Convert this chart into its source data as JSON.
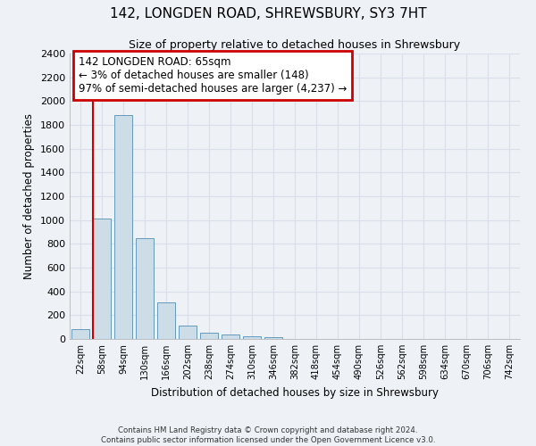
{
  "title_line1": "142, LONGDEN ROAD, SHREWSBURY, SY3 7HT",
  "title_line2": "Size of property relative to detached houses in Shrewsbury",
  "xlabel": "Distribution of detached houses by size in Shrewsbury",
  "ylabel": "Number of detached properties",
  "bar_labels": [
    "22sqm",
    "58sqm",
    "94sqm",
    "130sqm",
    "166sqm",
    "202sqm",
    "238sqm",
    "274sqm",
    "310sqm",
    "346sqm",
    "382sqm",
    "418sqm",
    "454sqm",
    "490sqm",
    "526sqm",
    "562sqm",
    "598sqm",
    "634sqm",
    "670sqm",
    "706sqm",
    "742sqm"
  ],
  "bar_values": [
    80,
    1010,
    1880,
    850,
    310,
    110,
    50,
    40,
    25,
    15,
    0,
    0,
    0,
    0,
    0,
    0,
    0,
    0,
    0,
    0,
    0
  ],
  "bar_color": "#ccdde8",
  "bar_edge_color": "#6699bb",
  "ylim": [
    0,
    2400
  ],
  "yticks": [
    0,
    200,
    400,
    600,
    800,
    1000,
    1200,
    1400,
    1600,
    1800,
    2000,
    2200,
    2400
  ],
  "annotation_text": "142 LONGDEN ROAD: 65sqm\n← 3% of detached houses are smaller (148)\n97% of semi-detached houses are larger (4,237) →",
  "annotation_box_color": "#ffffff",
  "annotation_box_edge_color": "#cc0000",
  "vline_color": "#cc0000",
  "vline_x": 0.6,
  "footnote": "Contains HM Land Registry data © Crown copyright and database right 2024.\nContains public sector information licensed under the Open Government Licence v3.0.",
  "background_color": "#eef2f7",
  "plot_background": "#eef2f7",
  "grid_color": "#d8dfe8"
}
